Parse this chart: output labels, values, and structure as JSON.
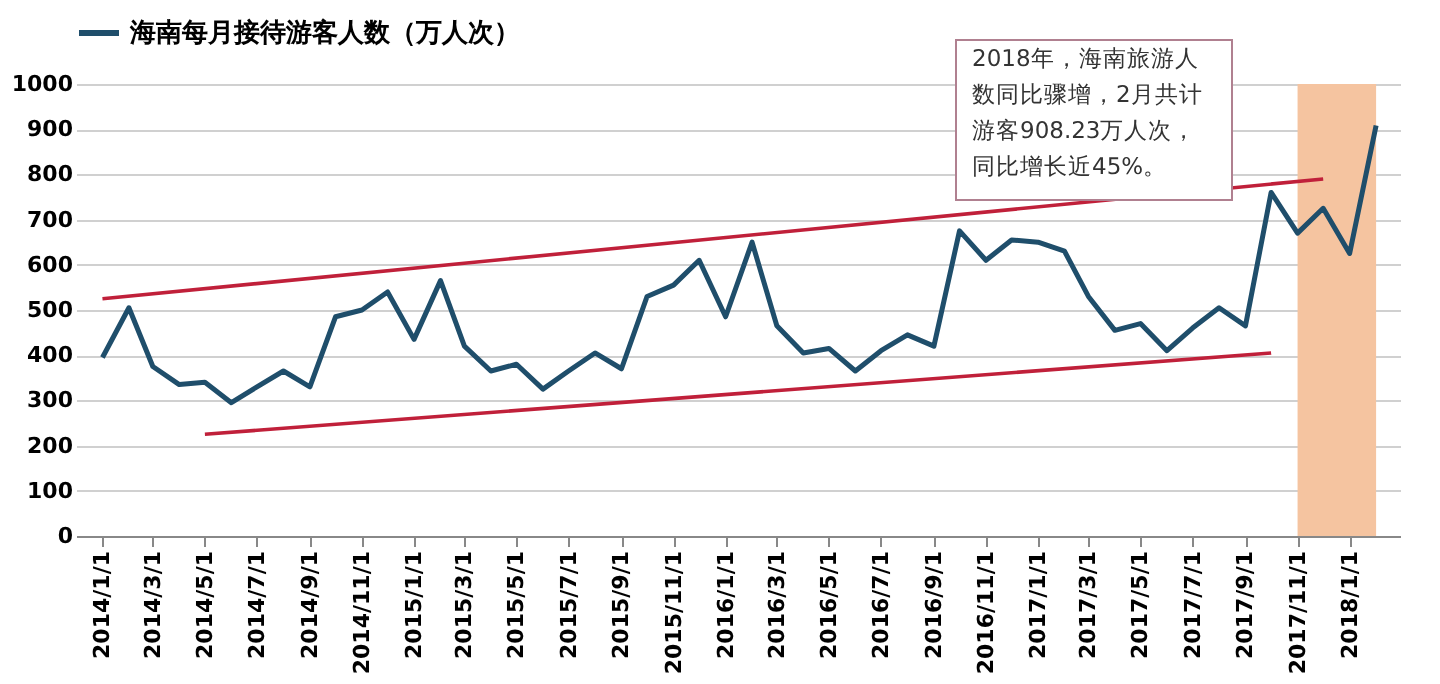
{
  "chart_data": {
    "type": "line",
    "x": [
      "2014-01",
      "2014-02",
      "2014-03",
      "2014-04",
      "2014-05",
      "2014-06",
      "2014-07",
      "2014-08",
      "2014-09",
      "2014-10",
      "2014-11",
      "2014-12",
      "2015-01",
      "2015-02",
      "2015-03",
      "2015-04",
      "2015-05",
      "2015-06",
      "2015-07",
      "2015-08",
      "2015-09",
      "2015-10",
      "2015-11",
      "2015-12",
      "2016-01",
      "2016-02",
      "2016-03",
      "2016-04",
      "2016-05",
      "2016-06",
      "2016-07",
      "2016-08",
      "2016-09",
      "2016-10",
      "2016-11",
      "2016-12",
      "2017-01",
      "2017-02",
      "2017-03",
      "2017-04",
      "2017-05",
      "2017-06",
      "2017-07",
      "2017-08",
      "2017-09",
      "2017-10",
      "2017-11",
      "2017-12",
      "2018-01",
      "2018-02"
    ],
    "series": [
      {
        "name": "海南每月接待游客人数（万人次）",
        "color": "#1f4e6b",
        "values": [
          395,
          505,
          375,
          335,
          340,
          295,
          330,
          365,
          330,
          485,
          500,
          540,
          435,
          565,
          420,
          365,
          380,
          325,
          365,
          405,
          370,
          530,
          555,
          610,
          485,
          650,
          465,
          405,
          415,
          365,
          410,
          445,
          420,
          675,
          610,
          655,
          650,
          630,
          530,
          455,
          470,
          410,
          460,
          505,
          465,
          760,
          670,
          725,
          625,
          908
        ]
      },
      {
        "type": "line",
        "color": "#c0203a",
        "x": [
          "2014-01",
          "2017-12"
        ],
        "values": [
          525,
          790
        ]
      },
      {
        "type": "line",
        "color": "#c0203a",
        "x": [
          "2014-05",
          "2017-10"
        ],
        "values": [
          225,
          405
        ]
      }
    ],
    "xlim": [
      "2013-12",
      "2018-03"
    ],
    "xticks": [
      {
        "value": "2014-01",
        "label": "2014/1/1"
      },
      {
        "value": "2014-03",
        "label": "2014/3/1"
      },
      {
        "value": "2014-05",
        "label": "2014/5/1"
      },
      {
        "value": "2014-07",
        "label": "2014/7/1"
      },
      {
        "value": "2014-09",
        "label": "2014/9/1"
      },
      {
        "value": "2014-11",
        "label": "2014/11/1"
      },
      {
        "value": "2015-01",
        "label": "2015/1/1"
      },
      {
        "value": "2015-03",
        "label": "2015/3/1"
      },
      {
        "value": "2015-05",
        "label": "2015/5/1"
      },
      {
        "value": "2015-07",
        "label": "2015/7/1"
      },
      {
        "value": "2015-09",
        "label": "2015/9/1"
      },
      {
        "value": "2015-11",
        "label": "2015/11/1"
      },
      {
        "value": "2016-01",
        "label": "2016/1/1"
      },
      {
        "value": "2016-03",
        "label": "2016/3/1"
      },
      {
        "value": "2016-05",
        "label": "2016/5/1"
      },
      {
        "value": "2016-07",
        "label": "2016/7/1"
      },
      {
        "value": "2016-09",
        "label": "2016/9/1"
      },
      {
        "value": "2016-11",
        "label": "2016/11/1"
      },
      {
        "value": "2017-01",
        "label": "2017/1/1"
      },
      {
        "value": "2017-03",
        "label": "2017/3/1"
      },
      {
        "value": "2017-05",
        "label": "2017/5/1"
      },
      {
        "value": "2017-07",
        "label": "2017/7/1"
      },
      {
        "value": "2017-09",
        "label": "2017/9/1"
      },
      {
        "value": "2017-11",
        "label": "2017/11/1"
      },
      {
        "value": "2018-01",
        "label": "2018/1/1"
      }
    ],
    "ylim": [
      0,
      1000
    ],
    "yticks": [
      0,
      100,
      200,
      300,
      400,
      500,
      600,
      700,
      800,
      900,
      1000
    ],
    "grid": "y",
    "legend": "top",
    "bands": [
      {
        "axis": "x",
        "from": "2017-11",
        "to": "2018-02",
        "color": "#f5c4a0"
      }
    ],
    "annotations": [
      "2018年，海南旅游人数同比骤增，2月共计游客908.23万人次，同比增长近45%。"
    ]
  }
}
